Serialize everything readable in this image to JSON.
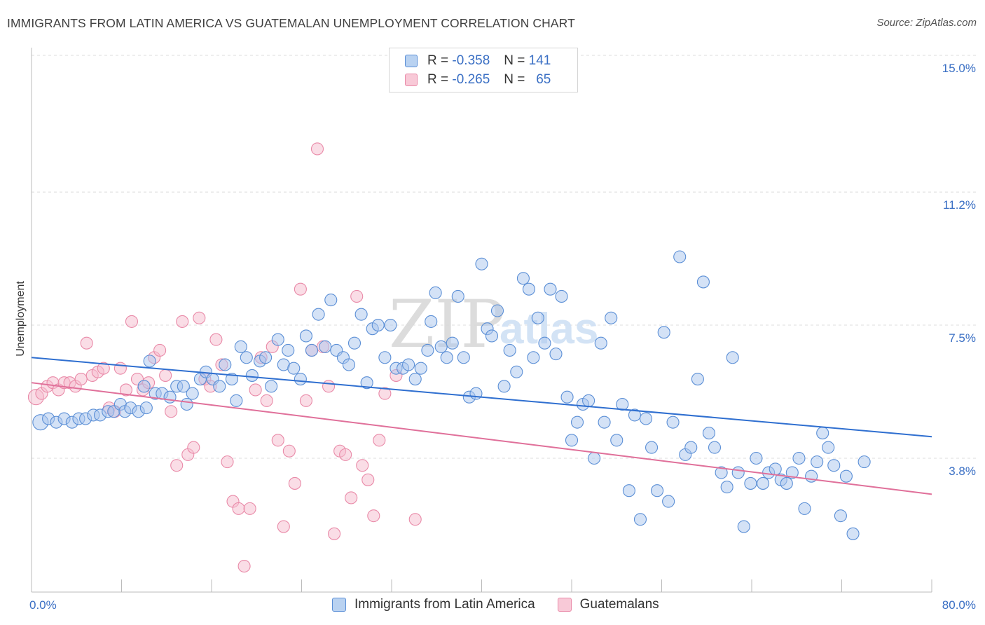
{
  "header": {
    "title": "IMMIGRANTS FROM LATIN AMERICA VS GUATEMALAN UNEMPLOYMENT CORRELATION CHART",
    "source": "Source: ZipAtlas.com"
  },
  "legend": {
    "rows": [
      {
        "r_label": "R =",
        "r_value": "-0.358",
        "n_label": "N =",
        "n_value": "141"
      },
      {
        "r_label": "R =",
        "r_value": "-0.265",
        "n_label": "N =",
        "n_value": "65"
      }
    ]
  },
  "watermark": {
    "zip": "ZIP",
    "atlas": "atlas"
  },
  "chart_data": {
    "type": "scatter",
    "xlabel": "",
    "ylabel": "Unemployment",
    "xlim": [
      0,
      80
    ],
    "ylim": [
      0,
      15.8
    ],
    "x_tick_labels": [
      "0.0%",
      "80.0%"
    ],
    "y_ticks": [
      3.8,
      7.5,
      11.2,
      15.0
    ],
    "y_tick_labels": [
      "3.8%",
      "7.5%",
      "11.2%",
      "15.0%"
    ],
    "grid": "horizontal dashed",
    "legend_position": "top-center",
    "colors": {
      "blue_fill": "#a9c6ee",
      "blue_stroke": "#5b8fd6",
      "blue_line": "#2f6fd0",
      "pink_fill": "#f6bccd",
      "pink_stroke": "#e98aa8",
      "pink_line": "#e0709a"
    },
    "series": [
      {
        "name": "Immigrants from Latin America",
        "trend": {
          "x": [
            0,
            80
          ],
          "y": [
            6.6,
            4.4
          ]
        },
        "points": [
          [
            0.8,
            4.8
          ],
          [
            1.5,
            4.9
          ],
          [
            2.2,
            4.8
          ],
          [
            2.9,
            4.9
          ],
          [
            3.6,
            4.8
          ],
          [
            4.2,
            4.9
          ],
          [
            4.8,
            4.9
          ],
          [
            5.5,
            5.0
          ],
          [
            6.1,
            5.0
          ],
          [
            6.8,
            5.1
          ],
          [
            7.3,
            5.1
          ],
          [
            7.9,
            5.3
          ],
          [
            8.3,
            5.1
          ],
          [
            8.8,
            5.2
          ],
          [
            9.5,
            5.1
          ],
          [
            10.2,
            5.2
          ],
          [
            10.0,
            5.8
          ],
          [
            10.5,
            6.5
          ],
          [
            11.0,
            5.6
          ],
          [
            11.6,
            5.6
          ],
          [
            12.3,
            5.5
          ],
          [
            12.9,
            5.8
          ],
          [
            13.5,
            5.8
          ],
          [
            13.8,
            5.3
          ],
          [
            14.3,
            5.6
          ],
          [
            15.0,
            6.0
          ],
          [
            15.5,
            6.2
          ],
          [
            16.1,
            6.0
          ],
          [
            16.7,
            5.8
          ],
          [
            17.2,
            6.4
          ],
          [
            17.8,
            6.0
          ],
          [
            18.2,
            5.4
          ],
          [
            18.6,
            6.9
          ],
          [
            19.1,
            6.6
          ],
          [
            19.6,
            6.1
          ],
          [
            20.3,
            6.5
          ],
          [
            20.8,
            6.6
          ],
          [
            21.3,
            5.8
          ],
          [
            21.9,
            7.1
          ],
          [
            22.4,
            6.4
          ],
          [
            22.8,
            6.8
          ],
          [
            23.3,
            6.3
          ],
          [
            23.9,
            6.0
          ],
          [
            24.4,
            7.2
          ],
          [
            24.9,
            6.8
          ],
          [
            25.5,
            7.8
          ],
          [
            26.1,
            6.9
          ],
          [
            26.6,
            8.2
          ],
          [
            27.1,
            6.8
          ],
          [
            27.7,
            6.6
          ],
          [
            28.2,
            6.4
          ],
          [
            28.7,
            7.0
          ],
          [
            29.3,
            7.8
          ],
          [
            29.8,
            5.9
          ],
          [
            30.3,
            7.4
          ],
          [
            30.8,
            7.5
          ],
          [
            31.4,
            6.6
          ],
          [
            31.9,
            7.5
          ],
          [
            32.4,
            6.3
          ],
          [
            33.0,
            6.3
          ],
          [
            33.5,
            6.4
          ],
          [
            34.1,
            6.0
          ],
          [
            34.6,
            6.3
          ],
          [
            35.2,
            6.8
          ],
          [
            35.5,
            7.6
          ],
          [
            35.9,
            8.4
          ],
          [
            36.4,
            6.9
          ],
          [
            36.9,
            6.6
          ],
          [
            37.4,
            7.0
          ],
          [
            37.9,
            8.3
          ],
          [
            38.4,
            6.6
          ],
          [
            38.9,
            5.5
          ],
          [
            39.5,
            5.6
          ],
          [
            40.0,
            9.2
          ],
          [
            40.5,
            7.4
          ],
          [
            40.9,
            7.2
          ],
          [
            41.4,
            7.9
          ],
          [
            42.0,
            5.8
          ],
          [
            42.5,
            6.8
          ],
          [
            43.1,
            6.2
          ],
          [
            43.7,
            8.8
          ],
          [
            44.2,
            8.5
          ],
          [
            44.6,
            6.6
          ],
          [
            45.0,
            7.7
          ],
          [
            45.6,
            7.0
          ],
          [
            46.1,
            8.5
          ],
          [
            46.6,
            6.7
          ],
          [
            47.1,
            8.3
          ],
          [
            47.6,
            5.5
          ],
          [
            48.0,
            4.3
          ],
          [
            48.5,
            4.8
          ],
          [
            49.0,
            5.3
          ],
          [
            49.5,
            5.4
          ],
          [
            50.0,
            3.8
          ],
          [
            50.6,
            7.0
          ],
          [
            50.9,
            4.8
          ],
          [
            51.5,
            7.7
          ],
          [
            52.0,
            4.3
          ],
          [
            52.5,
            5.3
          ],
          [
            53.1,
            2.9
          ],
          [
            53.6,
            5.0
          ],
          [
            54.1,
            2.1
          ],
          [
            54.6,
            4.9
          ],
          [
            55.1,
            4.1
          ],
          [
            55.6,
            2.9
          ],
          [
            56.2,
            7.3
          ],
          [
            56.6,
            2.6
          ],
          [
            57.0,
            4.8
          ],
          [
            57.6,
            9.4
          ],
          [
            58.1,
            3.9
          ],
          [
            58.6,
            4.1
          ],
          [
            59.2,
            6.0
          ],
          [
            59.7,
            8.7
          ],
          [
            60.2,
            4.5
          ],
          [
            60.7,
            4.1
          ],
          [
            61.3,
            3.4
          ],
          [
            61.8,
            3.0
          ],
          [
            62.3,
            6.6
          ],
          [
            62.8,
            3.4
          ],
          [
            63.3,
            1.9
          ],
          [
            63.9,
            3.1
          ],
          [
            64.4,
            3.8
          ],
          [
            65.0,
            3.1
          ],
          [
            65.5,
            3.4
          ],
          [
            66.1,
            3.5
          ],
          [
            66.6,
            3.2
          ],
          [
            67.1,
            3.1
          ],
          [
            67.6,
            3.4
          ],
          [
            68.2,
            3.8
          ],
          [
            68.7,
            2.4
          ],
          [
            69.3,
            3.3
          ],
          [
            69.8,
            3.7
          ],
          [
            70.3,
            4.5
          ],
          [
            70.8,
            4.1
          ],
          [
            71.3,
            3.6
          ],
          [
            71.9,
            2.2
          ],
          [
            72.4,
            3.3
          ],
          [
            73.0,
            1.7
          ],
          [
            74.0,
            3.7
          ]
        ]
      },
      {
        "name": "Guatemalans",
        "trend": {
          "x": [
            0,
            80
          ],
          "y": [
            5.9,
            2.8
          ]
        },
        "points": [
          [
            0.4,
            5.5
          ],
          [
            0.9,
            5.6
          ],
          [
            1.4,
            5.8
          ],
          [
            1.9,
            5.9
          ],
          [
            2.4,
            5.7
          ],
          [
            2.9,
            5.9
          ],
          [
            3.4,
            5.9
          ],
          [
            3.9,
            5.8
          ],
          [
            4.4,
            6.0
          ],
          [
            4.9,
            7.0
          ],
          [
            5.4,
            6.1
          ],
          [
            5.9,
            6.2
          ],
          [
            6.4,
            6.3
          ],
          [
            6.9,
            5.2
          ],
          [
            7.4,
            5.1
          ],
          [
            7.9,
            6.3
          ],
          [
            8.4,
            5.7
          ],
          [
            8.9,
            7.6
          ],
          [
            9.4,
            6.0
          ],
          [
            9.9,
            5.7
          ],
          [
            10.4,
            5.9
          ],
          [
            10.9,
            6.6
          ],
          [
            11.4,
            6.8
          ],
          [
            11.9,
            6.1
          ],
          [
            12.4,
            5.1
          ],
          [
            12.9,
            3.6
          ],
          [
            13.4,
            7.6
          ],
          [
            13.9,
            3.9
          ],
          [
            14.4,
            4.1
          ],
          [
            14.9,
            7.7
          ],
          [
            15.4,
            6.0
          ],
          [
            15.9,
            5.8
          ],
          [
            16.4,
            7.1
          ],
          [
            16.9,
            6.4
          ],
          [
            17.4,
            3.7
          ],
          [
            17.9,
            2.6
          ],
          [
            18.4,
            2.4
          ],
          [
            18.9,
            0.8
          ],
          [
            19.4,
            2.4
          ],
          [
            19.9,
            5.7
          ],
          [
            20.4,
            6.6
          ],
          [
            20.9,
            5.4
          ],
          [
            21.4,
            6.9
          ],
          [
            21.9,
            4.3
          ],
          [
            22.4,
            1.9
          ],
          [
            22.9,
            4.0
          ],
          [
            23.4,
            3.1
          ],
          [
            23.9,
            8.5
          ],
          [
            24.4,
            5.4
          ],
          [
            24.9,
            6.8
          ],
          [
            25.4,
            12.4
          ],
          [
            25.9,
            6.9
          ],
          [
            26.4,
            5.8
          ],
          [
            26.9,
            1.7
          ],
          [
            27.4,
            4.0
          ],
          [
            27.9,
            3.9
          ],
          [
            28.4,
            2.7
          ],
          [
            28.9,
            8.3
          ],
          [
            29.4,
            3.6
          ],
          [
            29.9,
            3.2
          ],
          [
            30.4,
            2.2
          ],
          [
            30.9,
            4.3
          ],
          [
            31.4,
            5.6
          ],
          [
            32.4,
            6.1
          ],
          [
            34.1,
            2.1
          ]
        ]
      }
    ]
  }
}
